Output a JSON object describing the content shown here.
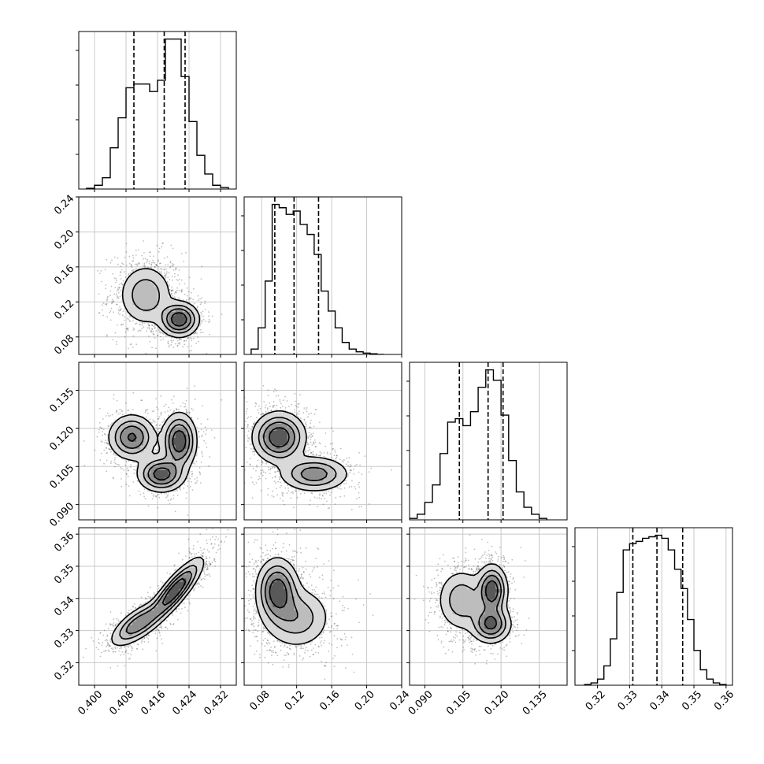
{
  "chart_data": {
    "type": "corner",
    "n_params": 4,
    "grid": true,
    "quantile_line_style": "dashed",
    "params": [
      {
        "range": [
          0.396,
          0.436
        ],
        "ticks": [
          0.4,
          0.408,
          0.416,
          0.424,
          0.432
        ],
        "tick_labels": [
          "0.400",
          "0.408",
          "0.416",
          "0.424",
          "0.432"
        ],
        "quantiles": [
          0.41,
          0.4177,
          0.423
        ]
      },
      {
        "range": [
          0.06,
          0.24
        ],
        "ticks": [
          0.08,
          0.12,
          0.16,
          0.2,
          0.24
        ],
        "tick_labels": [
          "0.08",
          "0.12",
          "0.16",
          "0.20",
          "0.24"
        ],
        "quantiles": [
          0.095,
          0.117,
          0.145
        ]
      },
      {
        "range": [
          0.084,
          0.146
        ],
        "ticks": [
          0.09,
          0.105,
          0.12,
          0.135
        ],
        "tick_labels": [
          "0.090",
          "0.105",
          "0.120",
          "0.135"
        ],
        "quantiles": [
          0.1036,
          0.1149,
          0.1208
        ]
      },
      {
        "range": [
          0.313,
          0.362
        ],
        "ticks": [
          0.32,
          0.33,
          0.34,
          0.35,
          0.36
        ],
        "tick_labels": [
          "0.32",
          "0.33",
          "0.34",
          "0.35",
          "0.36"
        ],
        "quantiles": [
          0.331,
          0.3385,
          0.3465
        ]
      }
    ],
    "histograms": [
      {
        "param": 0,
        "bin_edges": [
          0.398,
          0.4,
          0.402,
          0.404,
          0.406,
          0.408,
          0.41,
          0.412,
          0.414,
          0.416,
          0.418,
          0.42,
          0.422,
          0.424,
          0.426,
          0.428,
          0.43,
          0.432,
          0.434
        ],
        "counts": [
          1,
          5,
          15,
          55,
          95,
          135,
          140,
          140,
          130,
          145,
          200,
          200,
          150,
          90,
          45,
          20,
          5,
          2
        ]
      },
      {
        "param": 1,
        "bin_edges": [
          0.068,
          0.076,
          0.084,
          0.092,
          0.1,
          0.108,
          0.116,
          0.124,
          0.132,
          0.14,
          0.148,
          0.156,
          0.164,
          0.172,
          0.18,
          0.188,
          0.196,
          0.204,
          0.212,
          0.22
        ],
        "counts": [
          8,
          40,
          110,
          225,
          220,
          210,
          215,
          195,
          180,
          150,
          95,
          65,
          40,
          18,
          8,
          4,
          2,
          1,
          0
        ]
      },
      {
        "param": 2,
        "bin_edges": [
          0.084,
          0.087,
          0.09,
          0.093,
          0.096,
          0.099,
          0.102,
          0.105,
          0.108,
          0.111,
          0.114,
          0.117,
          0.12,
          0.123,
          0.126,
          0.129,
          0.132,
          0.135,
          0.138
        ],
        "counts": [
          2,
          8,
          25,
          50,
          95,
          140,
          145,
          135,
          155,
          190,
          215,
          200,
          150,
          85,
          40,
          18,
          8,
          2
        ]
      },
      {
        "param": 3,
        "bin_edges": [
          0.316,
          0.318,
          0.32,
          0.322,
          0.324,
          0.326,
          0.328,
          0.33,
          0.332,
          0.334,
          0.336,
          0.338,
          0.34,
          0.342,
          0.344,
          0.346,
          0.348,
          0.35,
          0.352,
          0.354,
          0.356,
          0.358,
          0.36
        ],
        "counts": [
          1,
          3,
          8,
          25,
          60,
          120,
          175,
          183,
          186,
          190,
          192,
          194,
          190,
          175,
          150,
          125,
          85,
          45,
          20,
          8,
          3,
          1
        ]
      }
    ],
    "pair_modes": [
      {
        "pair": [
          0,
          1
        ],
        "modes": [
          {
            "x": 0.413,
            "y": 0.128,
            "sx": 0.0035,
            "sy": 0.018,
            "rho": 0.0,
            "w": 0.55
          },
          {
            "x": 0.4215,
            "y": 0.1,
            "sx": 0.0025,
            "sy": 0.01,
            "rho": 0.0,
            "w": 0.45
          }
        ]
      },
      {
        "pair": [
          0,
          2
        ],
        "modes": [
          {
            "x": 0.4095,
            "y": 0.1165,
            "sx": 0.003,
            "sy": 0.0045,
            "rho": 0.0,
            "w": 0.33
          },
          {
            "x": 0.4215,
            "y": 0.115,
            "sx": 0.0022,
            "sy": 0.0055,
            "rho": 0.0,
            "w": 0.37
          },
          {
            "x": 0.417,
            "y": 0.102,
            "sx": 0.003,
            "sy": 0.0035,
            "rho": 0.0,
            "w": 0.3
          }
        ]
      },
      {
        "pair": [
          1,
          2
        ],
        "modes": [
          {
            "x": 0.1,
            "y": 0.1165,
            "sx": 0.015,
            "sy": 0.005,
            "rho": 0.0,
            "w": 0.62
          },
          {
            "x": 0.14,
            "y": 0.102,
            "sx": 0.02,
            "sy": 0.0035,
            "rho": 0.0,
            "w": 0.38
          }
        ]
      },
      {
        "pair": [
          0,
          3
        ],
        "modes": [
          {
            "x": 0.4205,
            "y": 0.3425,
            "sx": 0.0035,
            "sy": 0.005,
            "rho": 0.85,
            "w": 0.6
          },
          {
            "x": 0.411,
            "y": 0.332,
            "sx": 0.0035,
            "sy": 0.0035,
            "rho": 0.7,
            "w": 0.4
          }
        ]
      },
      {
        "pair": [
          1,
          3
        ],
        "modes": [
          {
            "x": 0.098,
            "y": 0.3425,
            "sx": 0.012,
            "sy": 0.005,
            "rho": 0.0,
            "w": 0.55
          },
          {
            "x": 0.12,
            "y": 0.334,
            "sx": 0.02,
            "sy": 0.005,
            "rho": 0.0,
            "w": 0.45
          }
        ]
      },
      {
        "pair": [
          2,
          3
        ],
        "modes": [
          {
            "x": 0.1045,
            "y": 0.3395,
            "sx": 0.005,
            "sy": 0.005,
            "rho": 0.0,
            "w": 0.35
          },
          {
            "x": 0.1165,
            "y": 0.3425,
            "sx": 0.003,
            "sy": 0.004,
            "rho": 0.0,
            "w": 0.35
          },
          {
            "x": 0.116,
            "y": 0.332,
            "sx": 0.004,
            "sy": 0.003,
            "rho": 0.0,
            "w": 0.3
          }
        ]
      }
    ]
  }
}
